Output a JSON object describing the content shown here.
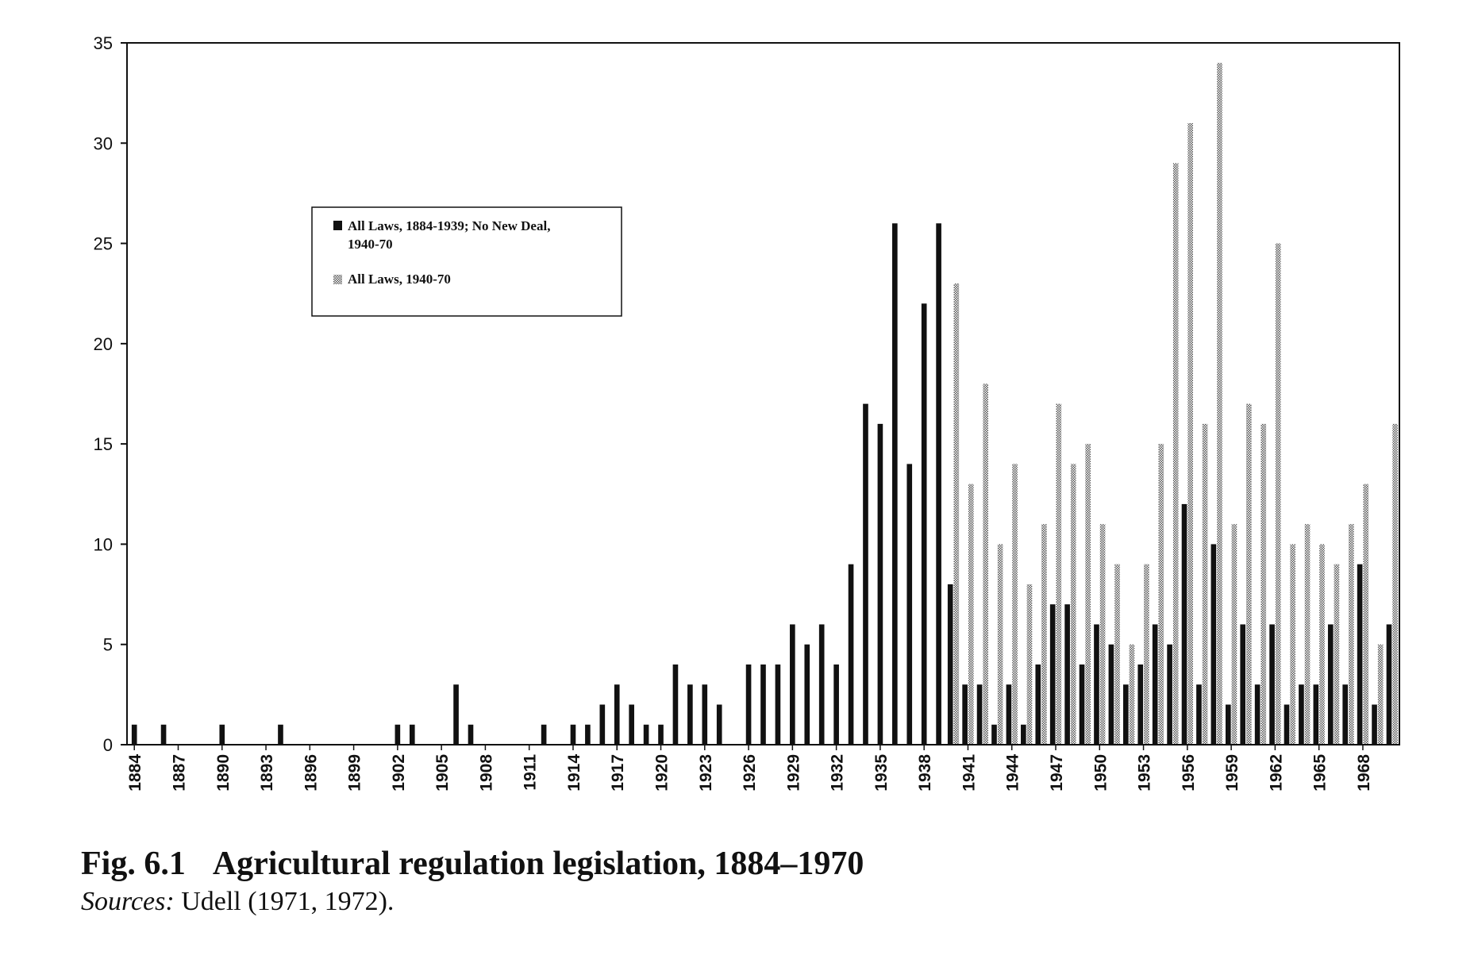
{
  "chart_data": {
    "type": "bar",
    "title": "",
    "xlabel": "",
    "ylabel": "",
    "ylim": [
      0,
      35
    ],
    "yticks": [
      0,
      5,
      10,
      15,
      20,
      25,
      30,
      35
    ],
    "x": [
      1884,
      1885,
      1886,
      1887,
      1888,
      1889,
      1890,
      1891,
      1892,
      1893,
      1894,
      1895,
      1896,
      1897,
      1898,
      1899,
      1900,
      1901,
      1902,
      1903,
      1904,
      1905,
      1906,
      1907,
      1908,
      1909,
      1910,
      1911,
      1912,
      1913,
      1914,
      1915,
      1916,
      1917,
      1918,
      1919,
      1920,
      1921,
      1922,
      1923,
      1924,
      1925,
      1926,
      1927,
      1928,
      1929,
      1930,
      1931,
      1932,
      1933,
      1934,
      1935,
      1936,
      1937,
      1938,
      1939,
      1940,
      1941,
      1942,
      1943,
      1944,
      1945,
      1946,
      1947,
      1948,
      1949,
      1950,
      1951,
      1952,
      1953,
      1954,
      1955,
      1956,
      1957,
      1958,
      1959,
      1960,
      1961,
      1962,
      1963,
      1964,
      1965,
      1966,
      1967,
      1968,
      1969,
      1970
    ],
    "xtick_labels": [
      "1884",
      "1887",
      "1890",
      "1893",
      "1896",
      "1899",
      "1902",
      "1905",
      "1908",
      "1911",
      "1914",
      "1917",
      "1920",
      "1923",
      "1926",
      "1929",
      "1932",
      "1935",
      "1938",
      "1941",
      "1944",
      "1947",
      "1950",
      "1953",
      "1956",
      "1959",
      "1962",
      "1965",
      "1968"
    ],
    "legend_position": "upper-left",
    "series": [
      {
        "name": "All Laws, 1884-1939; No New Deal, 1940-70",
        "style": "solid",
        "values": [
          1,
          0,
          1,
          0,
          0,
          0,
          1,
          0,
          0,
          0,
          1,
          0,
          0,
          0,
          0,
          0,
          0,
          0,
          1,
          1,
          0,
          0,
          3,
          1,
          0,
          0,
          0,
          0,
          1,
          0,
          1,
          1,
          2,
          3,
          2,
          1,
          1,
          4,
          3,
          3,
          2,
          0,
          4,
          4,
          4,
          6,
          5,
          6,
          4,
          9,
          17,
          16,
          26,
          14,
          22,
          26,
          8,
          3,
          3,
          1,
          3,
          1,
          4,
          7,
          7,
          4,
          6,
          5,
          3,
          4,
          6,
          5,
          12,
          3,
          10,
          2,
          6,
          3,
          6,
          2,
          3,
          3,
          6,
          3,
          9,
          2,
          6
        ]
      },
      {
        "name": "All Laws, 1940-70",
        "style": "hatched",
        "values": [
          null,
          null,
          null,
          null,
          null,
          null,
          null,
          null,
          null,
          null,
          null,
          null,
          null,
          null,
          null,
          null,
          null,
          null,
          null,
          null,
          null,
          null,
          null,
          null,
          null,
          null,
          null,
          null,
          null,
          null,
          null,
          null,
          null,
          null,
          null,
          null,
          null,
          null,
          null,
          null,
          null,
          null,
          null,
          null,
          null,
          null,
          null,
          null,
          null,
          null,
          null,
          null,
          null,
          null,
          null,
          null,
          23,
          13,
          18,
          10,
          14,
          8,
          11,
          17,
          14,
          15,
          11,
          9,
          5,
          9,
          15,
          29,
          31,
          16,
          34,
          11,
          17,
          16,
          25,
          10,
          11,
          10,
          9,
          11,
          13,
          5,
          16
        ]
      }
    ],
    "legend_labels": [
      [
        "All Laws, 1884-1939; No New Deal,",
        "1940-70"
      ],
      [
        "All Laws, 1940-70"
      ]
    ]
  },
  "caption": {
    "fig_number": "Fig. 6.1",
    "fig_title": "Agricultural regulation legislation, 1884–1970",
    "sources_label": "Sources:",
    "sources_text": " Udell (1971, 1972)."
  }
}
